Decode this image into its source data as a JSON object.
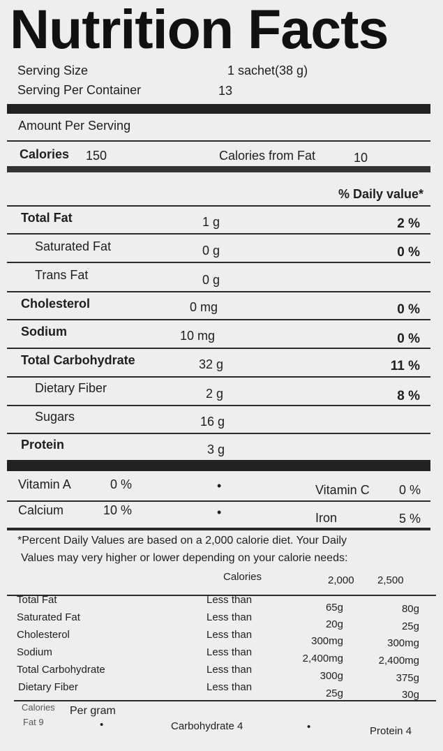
{
  "title": "Nutrition Facts",
  "serving": {
    "size_label": "Serving Size",
    "size_value": "1 sachet(38 g)",
    "per_container_label": "Serving Per Container",
    "per_container_value": "13"
  },
  "amount_per_serving": "Amount Per Serving",
  "calories": {
    "label": "Calories",
    "value": "150",
    "from_fat_label": "Calories from Fat",
    "from_fat_value": "10"
  },
  "daily_value_header": "% Daily value*",
  "nutrients": [
    {
      "name": "Total Fat",
      "amount": "1 g",
      "dv": "2 %"
    },
    {
      "name": "Saturated Fat",
      "amount": "0 g",
      "dv": "0 %"
    },
    {
      "name": "Trans Fat",
      "amount": "0 g",
      "dv": ""
    },
    {
      "name": "Cholesterol",
      "amount": "0 mg",
      "dv": "0 %"
    },
    {
      "name": "Sodium",
      "amount": "10 mg",
      "dv": "0 %"
    },
    {
      "name": "Total Carbohydrate",
      "amount": "32 g",
      "dv": "11 %"
    },
    {
      "name": "Dietary Fiber",
      "amount": "2 g",
      "dv": "8 %"
    },
    {
      "name": "Sugars",
      "amount": "16 g",
      "dv": ""
    },
    {
      "name": "Protein",
      "amount": "3 g",
      "dv": ""
    }
  ],
  "vitamins": [
    {
      "name": "Vitamin A",
      "dv": "0 %"
    },
    {
      "name": "Vitamin C",
      "dv": "0 %"
    },
    {
      "name": "Calcium",
      "dv": "10 %"
    },
    {
      "name": "Iron",
      "dv": "5 %"
    }
  ],
  "separator": "•",
  "footnote": [
    "*Percent Daily Values are based on a 2,000 calorie diet. Your Daily",
    "Values may very higher or lower depending on your calorie needs:"
  ],
  "dv_table": {
    "header": [
      "Calories",
      "2,000",
      "2,500"
    ],
    "rows": [
      {
        "name": "Total Fat",
        "qualifier": "Less than",
        "v2000": "65g",
        "v2500": "80g"
      },
      {
        "name": "Saturated Fat",
        "qualifier": "Less than",
        "v2000": "20g",
        "v2500": "25g"
      },
      {
        "name": "Cholesterol",
        "qualifier": "Less than",
        "v2000": "300mg",
        "v2500": "300mg"
      },
      {
        "name": "Sodium",
        "qualifier": "Less than",
        "v2000": "2,400mg",
        "v2500": "2,400mg"
      },
      {
        "name": "Total Carbohydrate",
        "qualifier": "Less than",
        "v2000": "300g",
        "v2500": "375g"
      },
      {
        "name": "Dietary Fiber",
        "qualifier": "Less than",
        "v2000": "25g",
        "v2500": "30g"
      }
    ]
  },
  "calories_per_gram": {
    "calories_label": "Calories",
    "per_gram_label": "Per gram",
    "fat": "Fat 9",
    "carbohydrate": "Carbohydrate 4",
    "protein": "Protein 4"
  }
}
